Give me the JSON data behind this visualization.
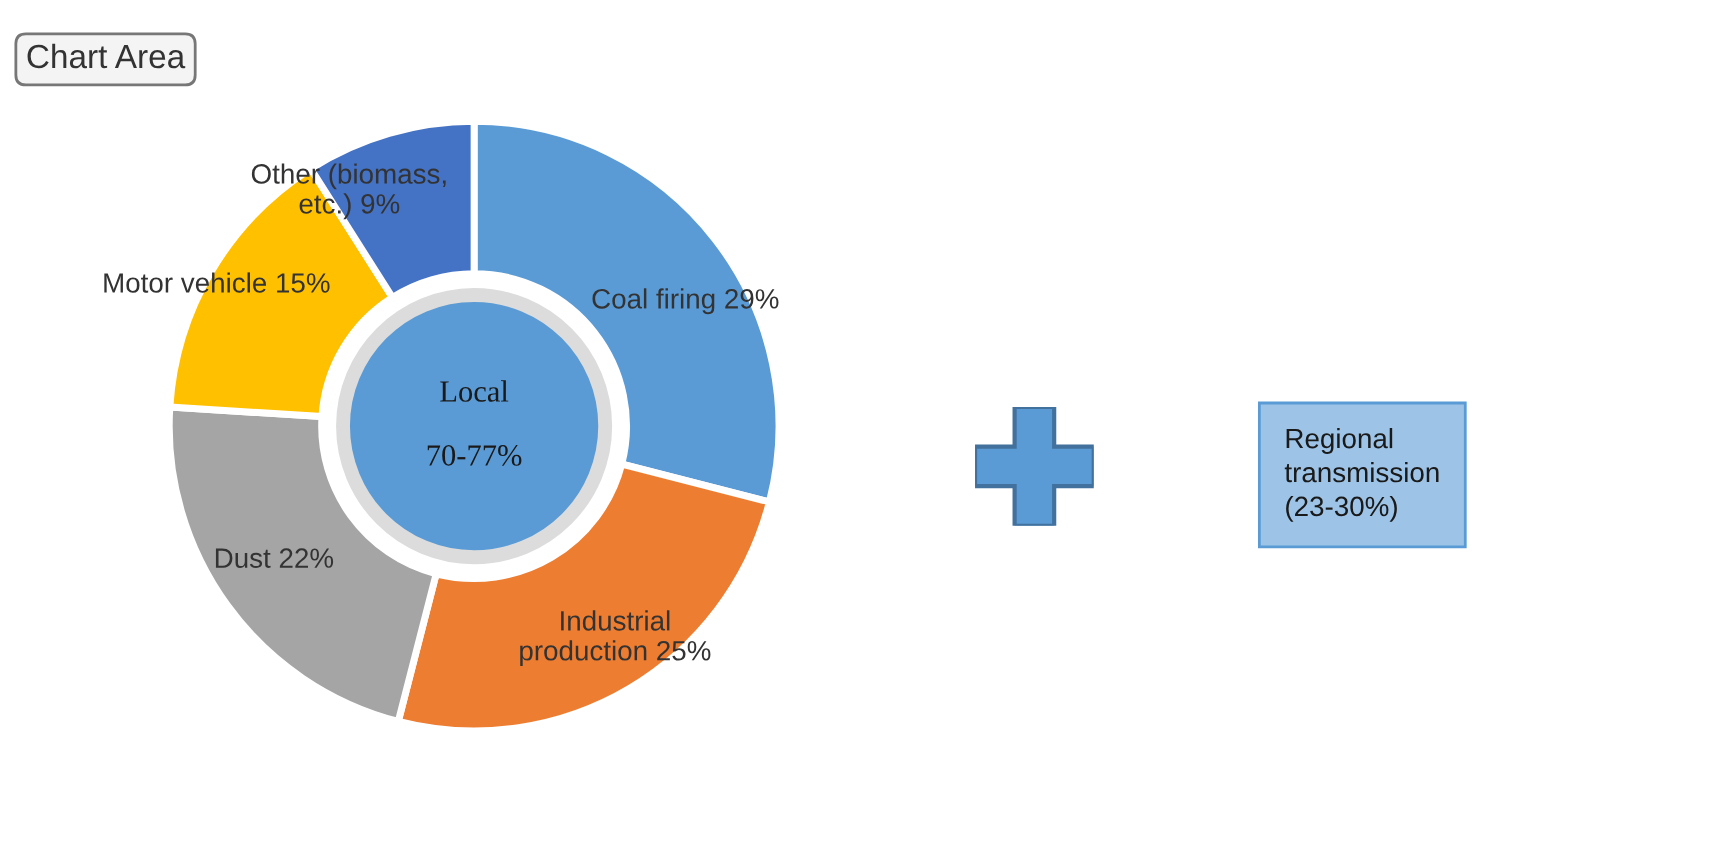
{
  "chart_data": {
    "type": "donut",
    "categories": [
      "Coal firing",
      "Industrial production",
      "Dust",
      "Motor vehicle",
      "Other (biomass, etc.)"
    ],
    "values": [
      29,
      25,
      22,
      15,
      9
    ],
    "colors": [
      "#5b9bd5",
      "#ed7d31",
      "#a5a5a5",
      "#ffc000",
      "#4472c4"
    ],
    "value_labels": [
      "29%",
      "25%",
      "22%",
      "15%",
      "9%"
    ],
    "annotations": [
      "Chart Area",
      "Local\n\n70-77%",
      "Regional\ntransmission\n(23-30%)"
    ]
  }
}
